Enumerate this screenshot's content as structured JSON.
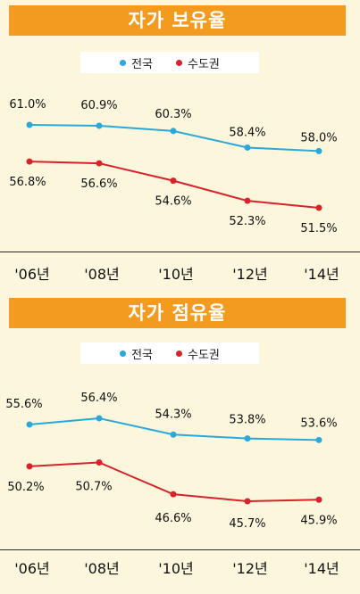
{
  "colors": {
    "national": "#2aa8dc",
    "capital": "#d8232a",
    "title_bg": "#f29b1e",
    "bg": "#fbf6dc"
  },
  "chart_data": [
    {
      "type": "line",
      "title": "자가 보유율",
      "categories": [
        "'06년",
        "'08년",
        "'10년",
        "'12년",
        "'14년"
      ],
      "series": [
        {
          "name": "전국",
          "values": [
            61.0,
            60.9,
            60.3,
            58.4,
            58.0
          ],
          "labels": [
            "61.0%",
            "60.9%",
            "60.3%",
            "58.4%",
            "58.0%"
          ]
        },
        {
          "name": "수도권",
          "values": [
            56.8,
            56.6,
            54.6,
            52.3,
            51.5
          ],
          "labels": [
            "56.8%",
            "56.6%",
            "54.6%",
            "52.3%",
            "51.5%"
          ]
        }
      ],
      "legend_position": "top-center",
      "grid": false
    },
    {
      "type": "line",
      "title": "자가 점유율",
      "categories": [
        "'06년",
        "'08년",
        "'10년",
        "'12년",
        "'14년"
      ],
      "series": [
        {
          "name": "전국",
          "values": [
            55.6,
            56.4,
            54.3,
            53.8,
            53.6
          ],
          "labels": [
            "55.6%",
            "56.4%",
            "54.3%",
            "53.8%",
            "53.6%"
          ]
        },
        {
          "name": "수도권",
          "values": [
            50.2,
            50.7,
            46.6,
            45.7,
            45.9
          ],
          "labels": [
            "50.2%",
            "50.7%",
            "46.6%",
            "45.7%",
            "45.9%"
          ]
        }
      ],
      "legend_position": "top-center",
      "grid": false
    }
  ]
}
